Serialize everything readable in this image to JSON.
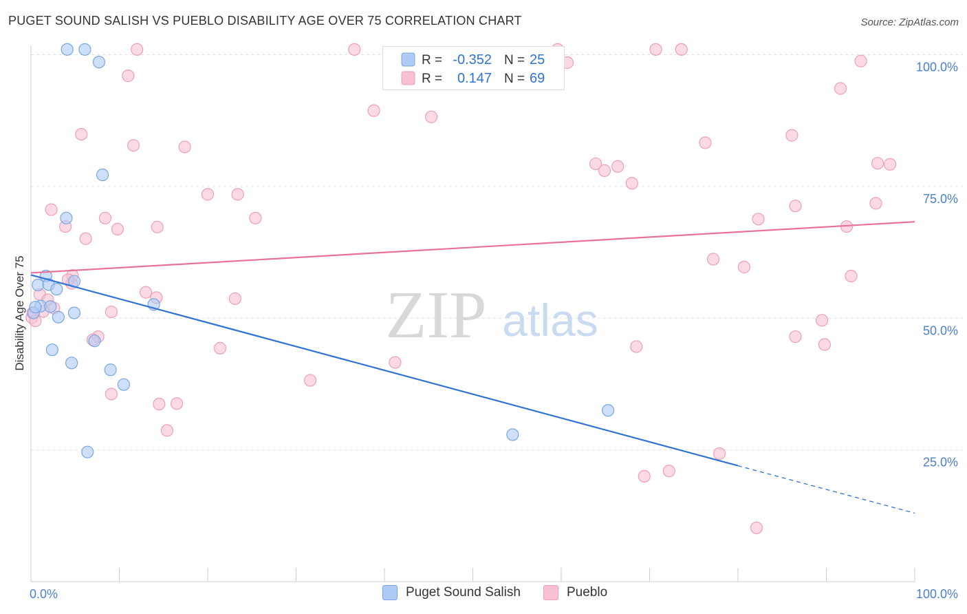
{
  "header": {
    "title": "PUGET SOUND SALISH VS PUEBLO DISABILITY AGE OVER 75 CORRELATION CHART",
    "source": "Source: ZipAtlas.com"
  },
  "watermark": {
    "zip": "ZIP",
    "atlas": "atlas"
  },
  "legend": {
    "rows": [
      {
        "r_label": "R =",
        "r_value": "-0.352",
        "n_label": "N =",
        "n_value": "25"
      },
      {
        "r_label": "R =",
        "r_value": "0.147",
        "n_label": "N =",
        "n_value": "69"
      }
    ]
  },
  "bottom_legend": [
    "Puget Sound Salish",
    "Pueblo"
  ],
  "chart_data": {
    "type": "scatter",
    "title": "PUGET SOUND SALISH VS PUEBLO DISABILITY AGE OVER 75 CORRELATION CHART",
    "xlabel": "",
    "ylabel": "Disability Age Over 75",
    "xlim": [
      0,
      100
    ],
    "ylim": [
      0,
      100
    ],
    "x_tick_labels": [
      "0.0%",
      "100.0%"
    ],
    "y_ticks": [
      25,
      50,
      75,
      100
    ],
    "y_tick_labels": [
      "25.0%",
      "50.0%",
      "75.0%",
      "100.0%"
    ],
    "grid": true,
    "legend_placement": "top-center",
    "colors": {
      "salish_fill": "#aecbf5",
      "salish_stroke": "#7aa6df",
      "salish_line": "#2f73d3",
      "pueblo_fill": "#f8c1d2",
      "pueblo_stroke": "#ee9fb8",
      "pueblo_line": "#e8719a",
      "tick_label": "#4a7fd1"
    },
    "series": [
      {
        "name": "Puget Sound Salish",
        "r": -0.352,
        "n": 25,
        "trend": {
          "x": [
            0,
            80
          ],
          "y": [
            58.2,
            22
          ],
          "dashed_to": [
            100,
            13
          ]
        },
        "points": [
          [
            4.1,
            101
          ],
          [
            6.1,
            101
          ],
          [
            7.7,
            98.6
          ],
          [
            8.1,
            77.2
          ],
          [
            4,
            69
          ],
          [
            1.7,
            58
          ],
          [
            0.8,
            56.3
          ],
          [
            2,
            56.4
          ],
          [
            2.9,
            55.5
          ],
          [
            4.9,
            57
          ],
          [
            1.1,
            52.3
          ],
          [
            2.2,
            52.2
          ],
          [
            0.3,
            51
          ],
          [
            4.9,
            51
          ],
          [
            3.1,
            50.2
          ],
          [
            13.9,
            52.6
          ],
          [
            2.4,
            44
          ],
          [
            4.6,
            41.5
          ],
          [
            9,
            40.2
          ],
          [
            10.5,
            37.4
          ],
          [
            7.2,
            45.7
          ],
          [
            6.4,
            24.6
          ],
          [
            54.5,
            27.9
          ],
          [
            65.3,
            32.5
          ],
          [
            0.5,
            52.1
          ]
        ]
      },
      {
        "name": "Pueblo",
        "r": 0.147,
        "n": 69,
        "trend": {
          "x": [
            0,
            100
          ],
          "y": [
            58.6,
            68.3
          ]
        },
        "points": [
          [
            12,
            101
          ],
          [
            36.6,
            101
          ],
          [
            59.6,
            101
          ],
          [
            70.7,
            101
          ],
          [
            73.6,
            101
          ],
          [
            60.7,
            98.5
          ],
          [
            93.9,
            98.8
          ],
          [
            11,
            96
          ],
          [
            38.8,
            89.4
          ],
          [
            45.3,
            88.2
          ],
          [
            91.6,
            93.6
          ],
          [
            5.7,
            84.9
          ],
          [
            11.6,
            82.8
          ],
          [
            17.4,
            82.5
          ],
          [
            76.3,
            83.3
          ],
          [
            86.1,
            84.7
          ],
          [
            63.9,
            79.3
          ],
          [
            64.9,
            78
          ],
          [
            66.4,
            78.8
          ],
          [
            68,
            75.6
          ],
          [
            95.8,
            79.4
          ],
          [
            97.2,
            79.2
          ],
          [
            20,
            73.5
          ],
          [
            23.4,
            73.5
          ],
          [
            2.3,
            70.6
          ],
          [
            8.4,
            69
          ],
          [
            25.4,
            69
          ],
          [
            86.5,
            71.3
          ],
          [
            82.3,
            68.8
          ],
          [
            95.6,
            71.8
          ],
          [
            3.9,
            67.4
          ],
          [
            9.8,
            66.9
          ],
          [
            14.3,
            67.3
          ],
          [
            92.3,
            67.4
          ],
          [
            6.2,
            65.1
          ],
          [
            77.2,
            61.2
          ],
          [
            80.7,
            59.7
          ],
          [
            92.8,
            58
          ],
          [
            4.7,
            58.1
          ],
          [
            4.6,
            56.6
          ],
          [
            4.2,
            57.3
          ],
          [
            1,
            54.5
          ],
          [
            1.9,
            53.5
          ],
          [
            13,
            54.9
          ],
          [
            14.2,
            53.9
          ],
          [
            23.1,
            53.7
          ],
          [
            2.6,
            51.9
          ],
          [
            9.1,
            51.2
          ],
          [
            89.5,
            49.6
          ],
          [
            7.6,
            46.5
          ],
          [
            7,
            45.9
          ],
          [
            21.4,
            44.3
          ],
          [
            68.5,
            44.6
          ],
          [
            86.5,
            46.5
          ],
          [
            89.8,
            45
          ],
          [
            41.2,
            41.6
          ],
          [
            31.6,
            38.2
          ],
          [
            9.1,
            35.6
          ],
          [
            14.5,
            33.7
          ],
          [
            16.5,
            33.8
          ],
          [
            15.4,
            28.7
          ],
          [
            77.9,
            24.3
          ],
          [
            69.4,
            20
          ],
          [
            72.2,
            21
          ],
          [
            82.1,
            10.2
          ],
          [
            0.1,
            50.1
          ],
          [
            0.2,
            51
          ],
          [
            0.5,
            49.5
          ],
          [
            1.4,
            51.3
          ]
        ]
      }
    ]
  }
}
